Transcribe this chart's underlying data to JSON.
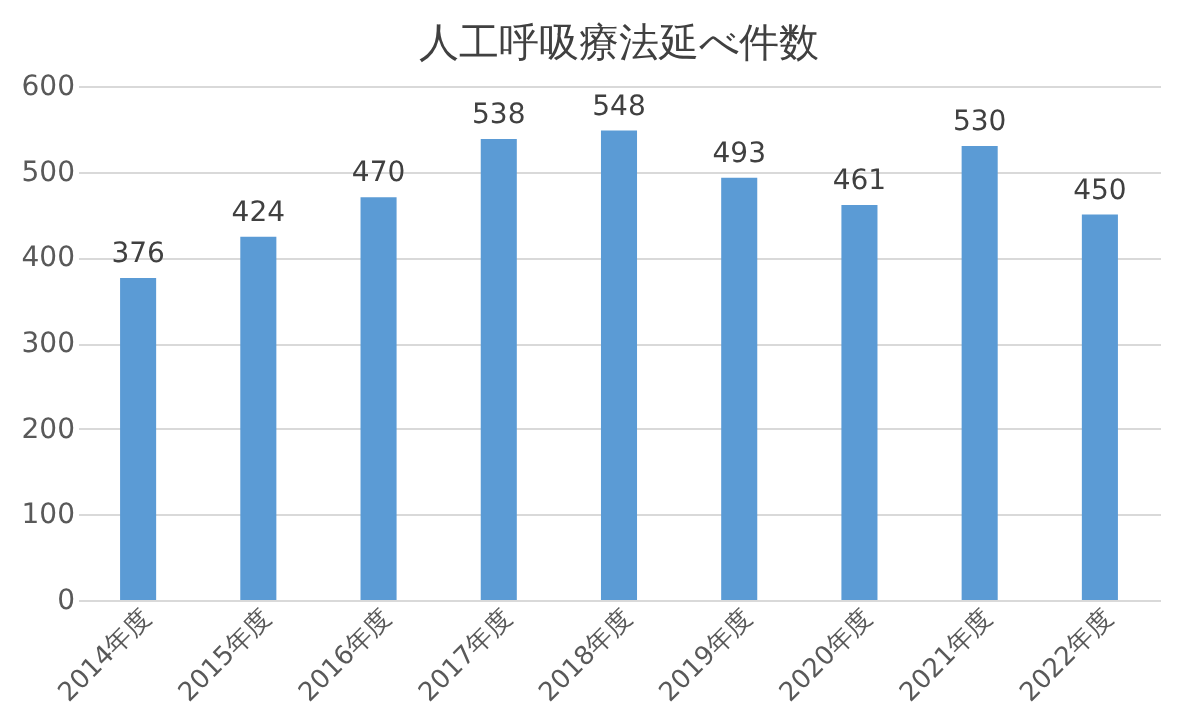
{
  "chart_data": {
    "type": "bar",
    "title": "人工呼吸療法延べ件数",
    "categories": [
      "2014年度",
      "2015年度",
      "2016年度",
      "2017年度",
      "2018年度",
      "2019年度",
      "2020年度",
      "2021年度",
      "2022年度"
    ],
    "values": [
      376,
      424,
      470,
      538,
      548,
      493,
      461,
      530,
      450
    ],
    "color": "#5b9bd5",
    "ylim": [
      0,
      600
    ],
    "yticks": [
      0,
      100,
      200,
      300,
      400,
      500,
      600
    ],
    "grid": "y",
    "data_labels": true
  }
}
